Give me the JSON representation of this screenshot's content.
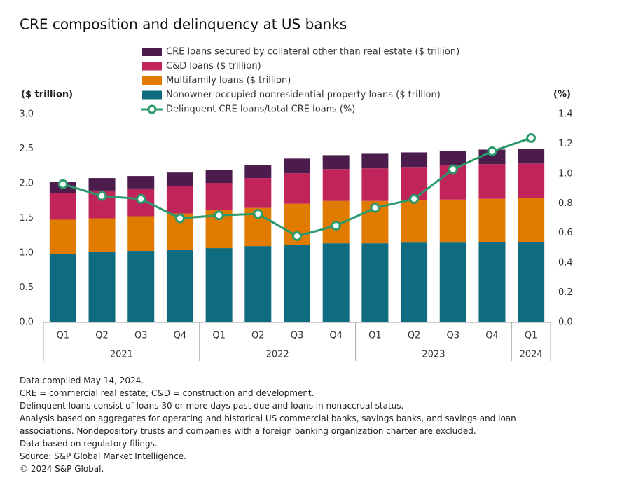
{
  "chart_data": {
    "type": "stacked_bar_line",
    "title": "CRE composition and delinquency at US banks",
    "y_label": "($ trillion)",
    "y2_label": "(%)",
    "groups": [
      {
        "label": "2021",
        "categories": [
          "Q1",
          "Q2",
          "Q3",
          "Q4"
        ]
      },
      {
        "label": "2022",
        "categories": [
          "Q1",
          "Q2",
          "Q3",
          "Q4"
        ]
      },
      {
        "label": "2023",
        "categories": [
          "Q1",
          "Q2",
          "Q3",
          "Q4"
        ]
      },
      {
        "label": "2024",
        "categories": [
          "Q1"
        ]
      }
    ],
    "series": [
      {
        "name": "CRE loans secured by collateral other than real estate ($ trillion)",
        "type": "bar",
        "color": "#4b1c4c",
        "values": [
          0.16,
          0.18,
          0.18,
          0.19,
          0.19,
          0.19,
          0.21,
          0.2,
          0.21,
          0.21,
          0.2,
          0.21,
          0.21
        ]
      },
      {
        "name": "C&D loans ($ trillion)",
        "type": "bar",
        "color": "#c0245a",
        "values": [
          0.38,
          0.4,
          0.4,
          0.4,
          0.39,
          0.43,
          0.44,
          0.46,
          0.47,
          0.48,
          0.5,
          0.5,
          0.5
        ]
      },
      {
        "name": "Multifamily loans ($ trillion)",
        "type": "bar",
        "color": "#e07b00",
        "values": [
          0.49,
          0.49,
          0.5,
          0.52,
          0.55,
          0.55,
          0.59,
          0.61,
          0.61,
          0.61,
          0.62,
          0.62,
          0.63
        ]
      },
      {
        "name": "Nonowner-occupied nonresidential property loans ($ trillion)",
        "type": "bar",
        "color": "#0e6b80",
        "values": [
          0.99,
          1.01,
          1.03,
          1.05,
          1.07,
          1.1,
          1.12,
          1.14,
          1.14,
          1.15,
          1.15,
          1.16,
          1.16
        ]
      },
      {
        "name": "Delinquent CRE loans/total CRE loans (%)",
        "type": "line",
        "axis": "y2",
        "color": "#2a9a6a",
        "values": [
          0.93,
          0.85,
          0.83,
          0.7,
          0.72,
          0.73,
          0.58,
          0.65,
          0.77,
          0.83,
          1.03,
          1.15,
          1.24
        ]
      }
    ],
    "ylim": [
      0,
      3
    ],
    "yticks": [
      {
        "value": 0,
        "label": "0.0"
      },
      {
        "value": 0.5,
        "label": "0.5"
      },
      {
        "value": 1,
        "label": "1.0"
      },
      {
        "value": 1.5,
        "label": "1.5"
      },
      {
        "value": 2,
        "label": "2.0"
      },
      {
        "value": 2.5,
        "label": "2.5"
      },
      {
        "value": 3,
        "label": "3.0"
      }
    ],
    "y2lim": [
      0,
      1.4
    ],
    "y2ticks": [
      {
        "value": 0,
        "label": "0.0"
      },
      0.2,
      0.4,
      0.6,
      0.8,
      {
        "value": 1,
        "label": "1.0"
      },
      1.2,
      1.4
    ],
    "notes": [
      "Data compiled May 14, 2024.",
      "CRE = commercial real estate; C&D = construction and development.",
      "Delinquent loans consist of loans 30 or more days past due and loans in nonaccrual status.",
      "Analysis based on aggregates for operating and historical US commercial banks, savings banks, and savings and loan associations. Nondepository trusts and companies with a foreign banking organization charter are excluded.",
      "Data based on regulatory filings.",
      "Source: S&P Global Market Intelligence.",
      "© 2024 S&P Global."
    ]
  }
}
